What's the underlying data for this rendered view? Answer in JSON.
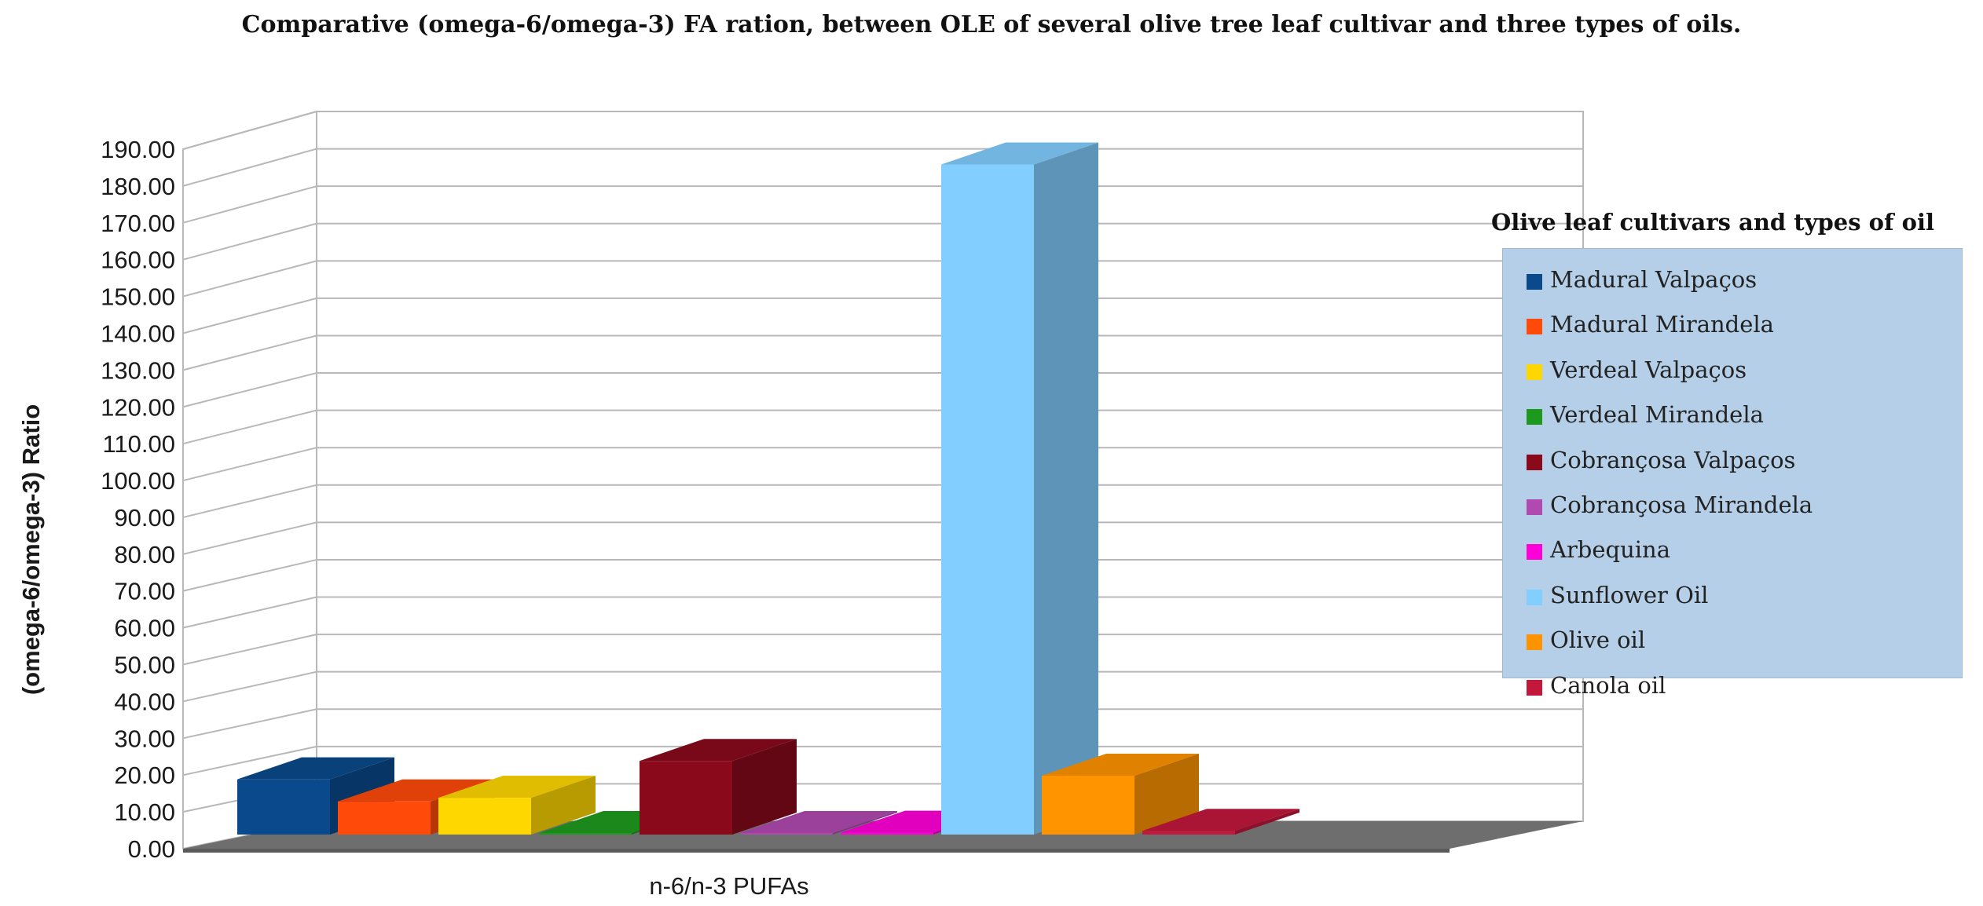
{
  "chart_data": {
    "type": "bar",
    "title": "Comparative (omega-6/omega-3) FA ration, between OLE of several olive tree leaf cultivar and three types of oils.",
    "ylabel": "(omega-6/omega-3) Ratio",
    "xlabel": "",
    "categories": [
      "n-6/n-3 PUFAs"
    ],
    "ylim": [
      0,
      190
    ],
    "yticks": [
      "0.00",
      "10.00",
      "20.00",
      "30.00",
      "40.00",
      "50.00",
      "60.00",
      "70.00",
      "80.00",
      "90.00",
      "100.00",
      "110.00",
      "120.00",
      "130.00",
      "140.00",
      "150.00",
      "160.00",
      "170.00",
      "180.00",
      "190.00"
    ],
    "grid": true,
    "legend_title": "Olive leaf cultivars and types of oil",
    "legend_position": "right",
    "series": [
      {
        "name": "Madural Valpaços",
        "values": [
          15.0
        ],
        "color": "#0a4a8c"
      },
      {
        "name": "Madural Mirandela",
        "values": [
          9.0
        ],
        "color": "#ff4a0a"
      },
      {
        "name": "Verdeal Valpaços",
        "values": [
          10.0
        ],
        "color": "#ffd700"
      },
      {
        "name": "Verdeal Mirandela",
        "values": [
          0.3
        ],
        "color": "#1d9a1d"
      },
      {
        "name": "Cobrançosa Valpaços",
        "values": [
          20.0
        ],
        "color": "#8a0a1c"
      },
      {
        "name": "Cobrançosa Mirandela",
        "values": [
          0.3
        ],
        "color": "#b04ab0"
      },
      {
        "name": "Arbequina",
        "values": [
          0.5
        ],
        "color": "#ff00d8"
      },
      {
        "name": "Sunflower Oil",
        "values": [
          182.0
        ],
        "color": "#82ceff"
      },
      {
        "name": "Olive oil",
        "values": [
          16.0
        ],
        "color": "#ff9400"
      },
      {
        "name": "Canola oil",
        "values": [
          1.0
        ],
        "color": "#c2183c"
      }
    ]
  }
}
